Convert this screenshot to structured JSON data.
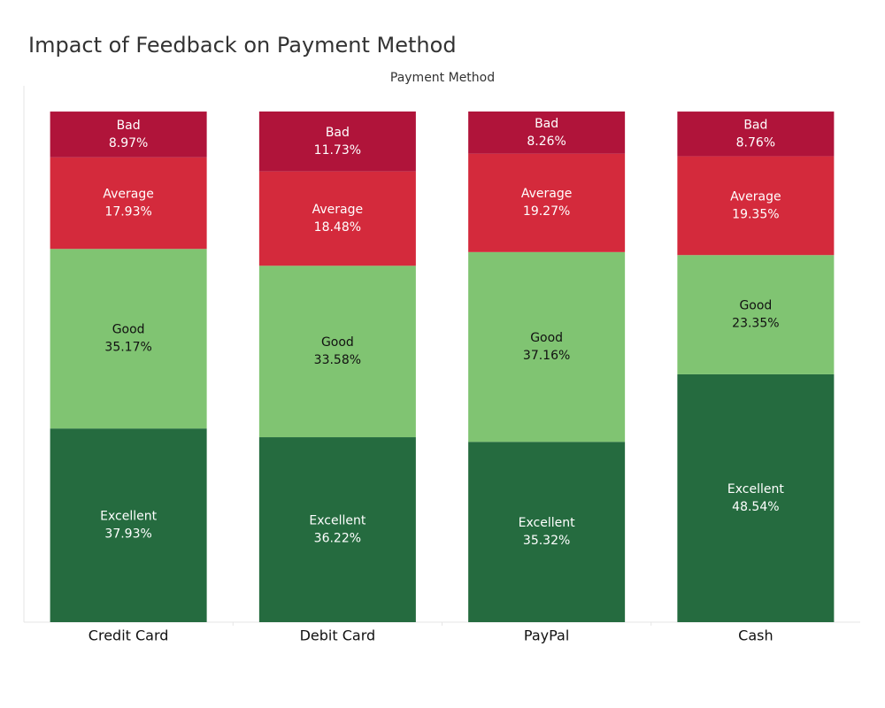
{
  "chart_data": {
    "type": "stacked-bar",
    "title": "Impact of Feedback on Payment Method",
    "x_label": "Payment Method",
    "categories": [
      "Credit Card",
      "Debit Card",
      "PayPal",
      "Cash"
    ],
    "series": [
      {
        "name": "Excellent",
        "color": "#256b3f",
        "values": [
          37.93,
          36.22,
          35.32,
          48.54
        ],
        "value_labels": [
          "37.93%",
          "36.22%",
          "35.32%",
          "48.54%"
        ]
      },
      {
        "name": "Good",
        "color": "#80c472",
        "values": [
          35.17,
          33.58,
          37.16,
          23.35
        ],
        "value_labels": [
          "35.17%",
          "33.58%",
          "37.16%",
          "23.35%"
        ]
      },
      {
        "name": "Average",
        "color": "#d42a3c",
        "values": [
          17.93,
          18.48,
          19.27,
          19.35
        ],
        "value_labels": [
          "17.93%",
          "18.48%",
          "19.27%",
          "19.35%"
        ]
      },
      {
        "name": "Bad",
        "color": "#b0143a",
        "values": [
          8.97,
          11.73,
          8.26,
          8.76
        ],
        "value_labels": [
          "8.97%",
          "11.73%",
          "8.26%",
          "8.76%"
        ]
      }
    ]
  }
}
